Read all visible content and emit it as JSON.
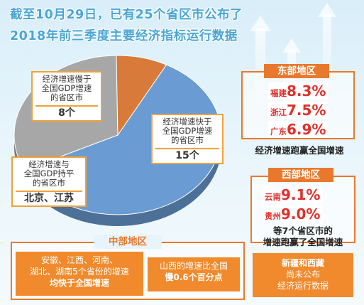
{
  "title": {
    "line1": "截至10月29日，已有25个省区市公布了",
    "line2": "2018年前三季度主要经济指标运行数据"
  },
  "chart_data": {
    "type": "pie",
    "labels": [
      "经济增速快于全国GDP增速的省区市",
      "经济增速慢于全国GDP增速的省区市",
      "经济增速与全国GDP持平的省区市"
    ],
    "values": [
      15,
      8,
      2
    ],
    "value_labels": [
      "15个",
      "8个",
      "北京、江苏"
    ],
    "colors": [
      "#6a9bd2",
      "#a7a7a7",
      "#d87a3a"
    ]
  },
  "callouts": {
    "slow": {
      "line1": "经济增速慢于",
      "line2": "全国GDP增速",
      "line3": "的省区市",
      "value": "8个"
    },
    "fast": {
      "line1": "经济增速快于",
      "line2": "全国GDP增速",
      "line3": "的省区市",
      "value": "15个"
    },
    "equal": {
      "line1": "经济增速与",
      "line2": "全国GDP持平",
      "line3": "的省区市",
      "value": "北京、江苏"
    }
  },
  "east": {
    "title": "东部地区",
    "items": [
      {
        "name": "福建",
        "value": "8.3%"
      },
      {
        "name": "浙江",
        "value": "7.5%"
      },
      {
        "name": "广东",
        "value": "6.9%"
      }
    ],
    "caption": "经济增速跑赢全国增速"
  },
  "west": {
    "title": "西部地区",
    "items": [
      {
        "name": "云南",
        "value": "9.1%"
      },
      {
        "name": "贵州",
        "value": "9.0%"
      }
    ],
    "caption_line1": "等7个省区市的",
    "caption_line2": "增速跑赢了全国增速"
  },
  "central": {
    "title": "中部地区",
    "card1_line1": "安徽、江西、河南、",
    "card1_line2": "湖北、湖南5个省份的增速",
    "card1_line3": "均快于全国增速",
    "card2_line1": "山西的增速比全国",
    "card2_line2": "慢0.6个百分点"
  },
  "xinjiang_tibet": {
    "line1": "新疆和西藏",
    "line2": "尚未公布",
    "line3": "经济运行数据"
  }
}
